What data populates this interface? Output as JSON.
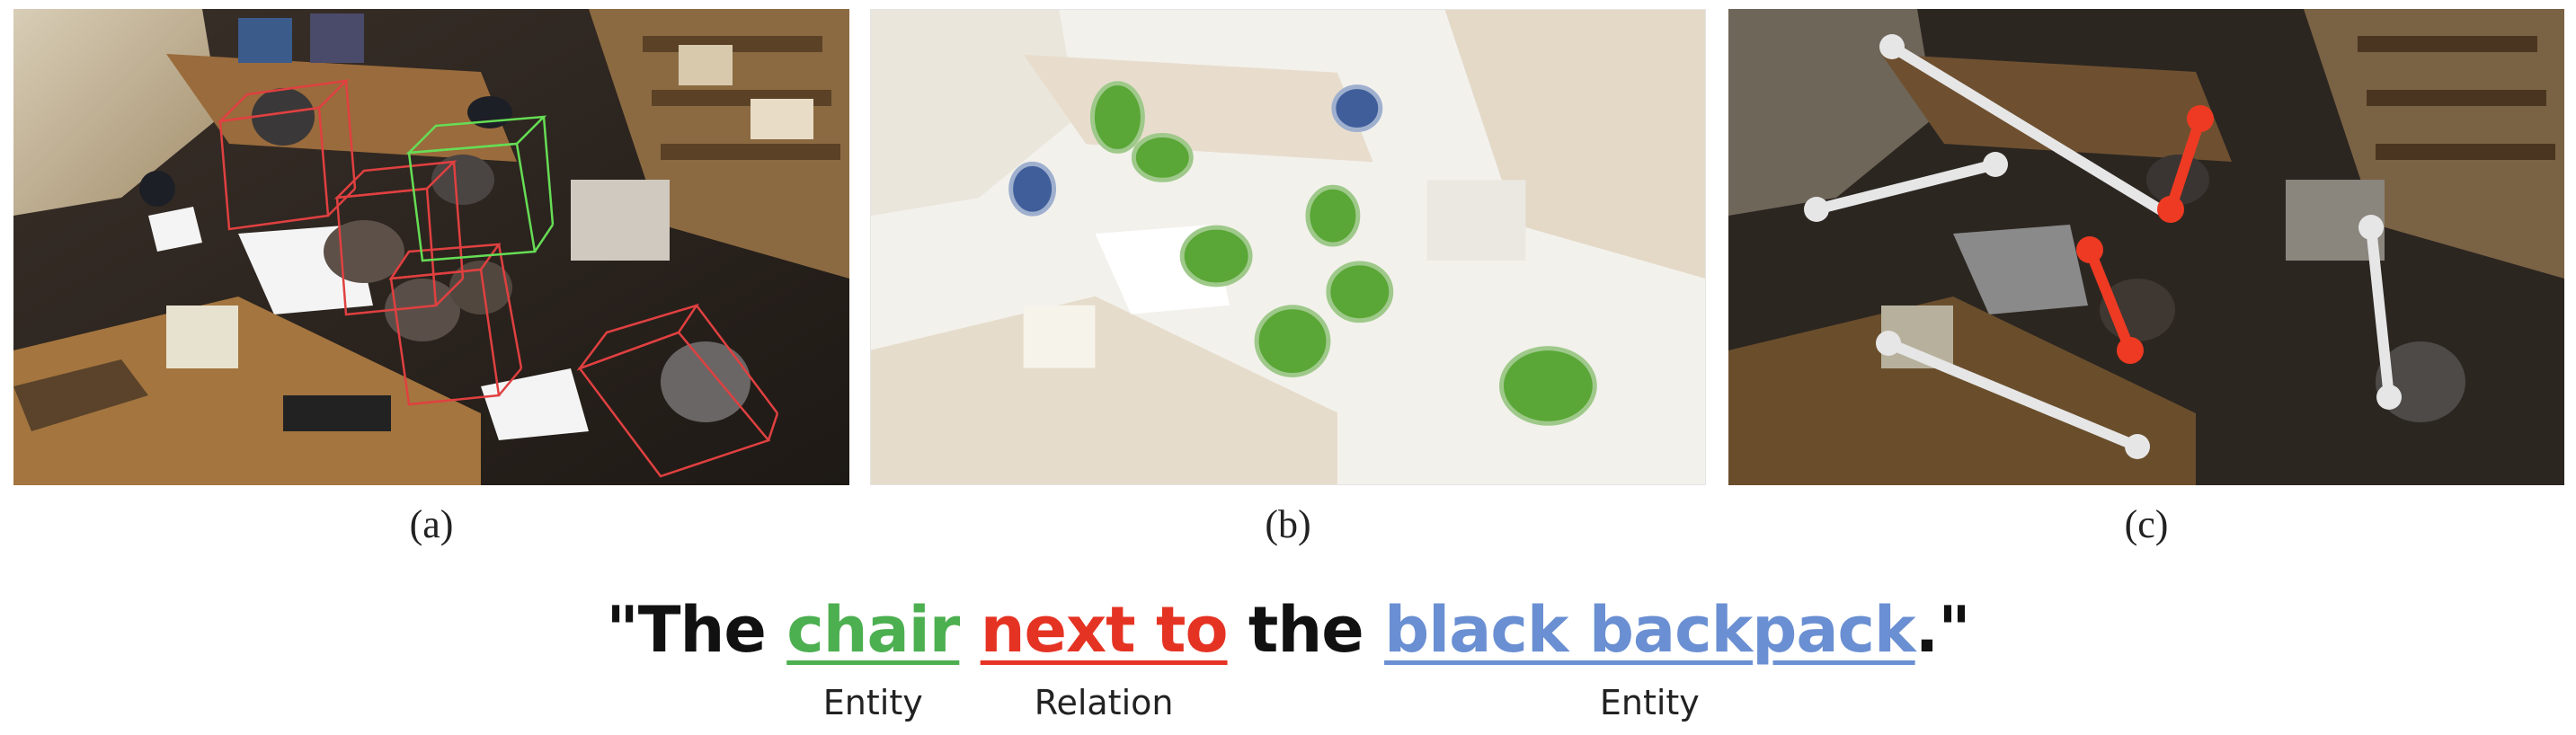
{
  "captions": {
    "a": "(a)",
    "b": "(b)",
    "c": "(c)"
  },
  "sentence": {
    "open": "\"The ",
    "entity1": "chair",
    "relation": "next to",
    "mid": " the ",
    "entity2": "black backpack",
    "close": ".\""
  },
  "roles": {
    "entity1": "Entity",
    "relation": "Relation",
    "entity2": "Entity"
  },
  "colors": {
    "entity1": "#4caf50",
    "relation": "#e53323",
    "entity2": "#6a8fd2",
    "box_chair": "#e04040",
    "box_target": "#66dd55",
    "edge_plain": "#e6e6e6",
    "edge_relation": "#ee3a22"
  }
}
